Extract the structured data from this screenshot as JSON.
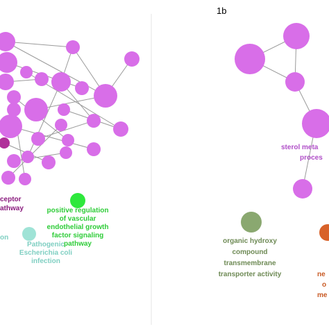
{
  "panel_label": "1b",
  "left_panel": {
    "labels": [
      {
        "lines": [
          "ceptor",
          "athway"
        ]
      },
      {
        "lines": [
          "positive regulation",
          "of vascular",
          "endothelial growth",
          "factor signaling",
          "pathway"
        ]
      },
      {
        "lines": [
          "on"
        ]
      },
      {
        "lines": [
          "Pathogenic",
          "Escherichia coli",
          "infection"
        ]
      }
    ]
  },
  "right_panel": {
    "labels": [
      {
        "lines": [
          "sterol meta",
          "proces"
        ]
      },
      {
        "lines": [
          "organic hydroxy",
          "compound",
          "transmembrane",
          "transporter activity"
        ]
      },
      {
        "lines": [
          "ne",
          "o",
          "me"
        ]
      }
    ]
  }
}
